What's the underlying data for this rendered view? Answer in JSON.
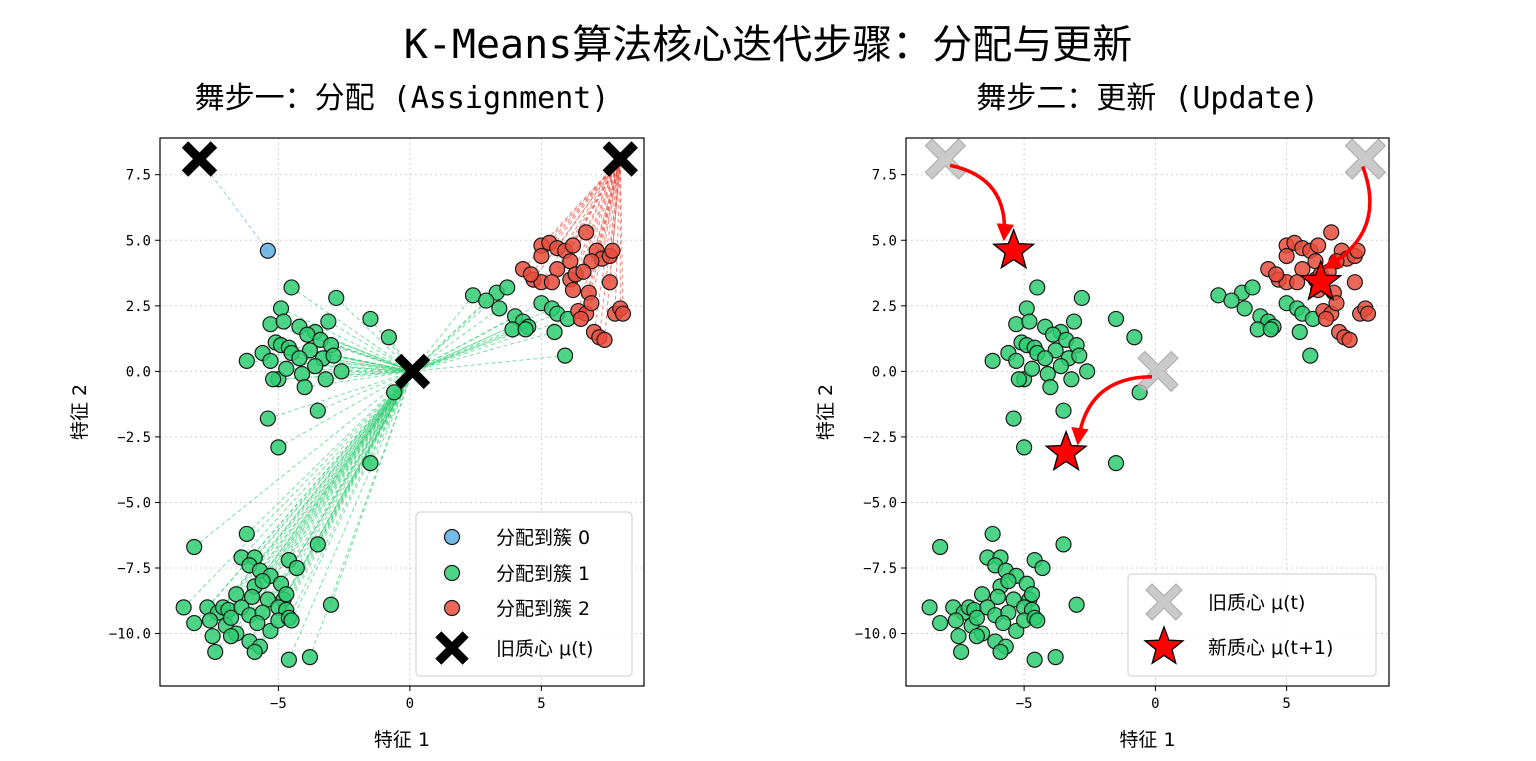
{
  "figure": {
    "suptitle": "K-Means算法核心迭代步骤：分配与更新"
  },
  "colors": {
    "cluster0": "#5DADE2",
    "cluster1": "#2ECC71",
    "cluster2": "#E74C3C",
    "old_centroid_left": "#000000",
    "old_centroid_right": "#BDBDBD",
    "new_centroid": "#FF0000",
    "arrow": "#FF0000"
  },
  "chart_data": [
    {
      "type": "scatter",
      "title": "舞步一：分配 (Assignment)",
      "xlabel": "特征 1",
      "ylabel": "特征 2",
      "xlim": [
        -9.5,
        8.9
      ],
      "ylim": [
        -12.0,
        8.9
      ],
      "xticks": [
        -5,
        0,
        5
      ],
      "xtick_labels": [
        "−5",
        "0",
        "5"
      ],
      "yticks": [
        -10,
        -7.5,
        -5,
        -2.5,
        0,
        2.5,
        5,
        7.5
      ],
      "ytick_labels": [
        "−10.0",
        "−7.5",
        "−5.0",
        "−2.5",
        "0.0",
        "2.5",
        "5.0",
        "7.5"
      ],
      "grid": true,
      "legend_position": "lower-right",
      "legend": [
        "分配到簇 0",
        "分配到簇 1",
        "分配到簇 2",
        "旧质心 μ(t)"
      ],
      "old_centroids": [
        [
          -8.0,
          8.1
        ],
        [
          0.1,
          0.0
        ],
        [
          8.0,
          8.1
        ]
      ],
      "cluster_0": [
        [
          -5.4,
          4.6
        ]
      ],
      "cluster_1": [
        [
          -4.5,
          3.2
        ],
        [
          -2.8,
          2.8
        ],
        [
          -4.9,
          2.4
        ],
        [
          -1.5,
          2.0
        ],
        [
          -5.3,
          1.8
        ],
        [
          -4.8,
          1.9
        ],
        [
          -4.2,
          1.7
        ],
        [
          -3.1,
          1.9
        ],
        [
          -3.6,
          1.5
        ],
        [
          -0.8,
          1.3
        ],
        [
          -5.1,
          1.1
        ],
        [
          -4.9,
          1.0
        ],
        [
          -4.6,
          0.9
        ],
        [
          -3.9,
          1.4
        ],
        [
          -3.4,
          1.2
        ],
        [
          -3.0,
          1.0
        ],
        [
          -5.6,
          0.7
        ],
        [
          -4.5,
          0.7
        ],
        [
          -3.8,
          0.8
        ],
        [
          -3.3,
          0.5
        ],
        [
          -6.2,
          0.4
        ],
        [
          -5.3,
          0.4
        ],
        [
          -4.2,
          0.5
        ],
        [
          -3.6,
          0.2
        ],
        [
          -2.9,
          0.6
        ],
        [
          -5.0,
          -0.3
        ],
        [
          -4.7,
          0.1
        ],
        [
          -4.1,
          -0.1
        ],
        [
          -3.2,
          -0.3
        ],
        [
          -2.6,
          0.0
        ],
        [
          -5.2,
          -0.3
        ],
        [
          -4.0,
          -0.6
        ],
        [
          -3.5,
          -1.5
        ],
        [
          -5.4,
          -1.8
        ],
        [
          -5.0,
          -2.9
        ],
        [
          -0.6,
          -0.8
        ],
        [
          -1.5,
          -3.5
        ],
        [
          -6.2,
          -6.2
        ],
        [
          -3.5,
          -6.6
        ],
        [
          -8.2,
          -6.7
        ],
        [
          -6.4,
          -7.1
        ],
        [
          -5.9,
          -7.1
        ],
        [
          -4.6,
          -7.2
        ],
        [
          -6.1,
          -7.4
        ],
        [
          -5.7,
          -7.6
        ],
        [
          -5.3,
          -7.8
        ],
        [
          -4.3,
          -7.5
        ],
        [
          -5.9,
          -8.2
        ],
        [
          -5.6,
          -8.0
        ],
        [
          -4.9,
          -8.1
        ],
        [
          -6.6,
          -8.5
        ],
        [
          -6.0,
          -8.6
        ],
        [
          -5.4,
          -8.7
        ],
        [
          -4.8,
          -8.7
        ],
        [
          -4.7,
          -8.5
        ],
        [
          -8.6,
          -9.0
        ],
        [
          -7.7,
          -9.0
        ],
        [
          -7.3,
          -9.2
        ],
        [
          -7.1,
          -9.0
        ],
        [
          -6.9,
          -9.1
        ],
        [
          -6.4,
          -9.0
        ],
        [
          -6.1,
          -9.3
        ],
        [
          -5.6,
          -9.2
        ],
        [
          -5.0,
          -9.0
        ],
        [
          -4.7,
          -9.1
        ],
        [
          -8.2,
          -9.6
        ],
        [
          -7.6,
          -9.5
        ],
        [
          -7.0,
          -9.7
        ],
        [
          -6.6,
          -10.0
        ],
        [
          -5.8,
          -9.6
        ],
        [
          -5.3,
          -9.9
        ],
        [
          -5.0,
          -9.5
        ],
        [
          -4.6,
          -9.4
        ],
        [
          -7.5,
          -10.1
        ],
        [
          -6.8,
          -10.1
        ],
        [
          -6.1,
          -10.3
        ],
        [
          -5.7,
          -10.5
        ],
        [
          -7.4,
          -10.7
        ],
        [
          -5.9,
          -10.7
        ],
        [
          -4.6,
          -11.0
        ],
        [
          -3.8,
          -10.9
        ],
        [
          -3.0,
          -8.9
        ],
        [
          -6.8,
          -9.4
        ],
        [
          -4.5,
          -9.5
        ],
        [
          2.4,
          2.9
        ],
        [
          3.3,
          3.0
        ],
        [
          2.9,
          2.7
        ],
        [
          3.7,
          3.2
        ],
        [
          3.4,
          2.4
        ],
        [
          4.0,
          2.1
        ],
        [
          4.3,
          1.9
        ],
        [
          4.5,
          1.7
        ],
        [
          3.9,
          1.6
        ],
        [
          4.4,
          1.6
        ],
        [
          5.0,
          2.6
        ],
        [
          5.4,
          2.4
        ],
        [
          5.6,
          2.2
        ],
        [
          6.0,
          2.0
        ],
        [
          5.5,
          1.5
        ],
        [
          5.9,
          0.6
        ]
      ],
      "cluster_2": [
        [
          6.7,
          5.3
        ],
        [
          5.0,
          4.8
        ],
        [
          5.3,
          4.9
        ],
        [
          5.6,
          4.7
        ],
        [
          5.9,
          4.6
        ],
        [
          6.2,
          4.8
        ],
        [
          7.1,
          4.6
        ],
        [
          7.3,
          4.3
        ],
        [
          7.6,
          4.4
        ],
        [
          7.7,
          4.6
        ],
        [
          5.0,
          4.4
        ],
        [
          6.1,
          4.2
        ],
        [
          6.9,
          4.2
        ],
        [
          4.3,
          3.9
        ],
        [
          4.7,
          3.5
        ],
        [
          5.0,
          3.4
        ],
        [
          5.6,
          3.9
        ],
        [
          6.1,
          3.5
        ],
        [
          6.3,
          3.7
        ],
        [
          6.6,
          3.8
        ],
        [
          4.6,
          3.7
        ],
        [
          5.4,
          3.4
        ],
        [
          6.2,
          3.1
        ],
        [
          6.8,
          3.0
        ],
        [
          7.6,
          3.4
        ],
        [
          6.4,
          2.3
        ],
        [
          6.7,
          2.2
        ],
        [
          6.9,
          2.6
        ],
        [
          6.5,
          2.0
        ],
        [
          7.0,
          1.5
        ],
        [
          7.2,
          1.3
        ],
        [
          7.4,
          1.2
        ],
        [
          7.8,
          2.2
        ],
        [
          8.0,
          2.4
        ],
        [
          8.1,
          2.2
        ]
      ],
      "lines": "dashed lines from each point to its assigned old centroid"
    },
    {
      "type": "scatter",
      "title": "舞步二：更新 (Update)",
      "xlabel": "特征 1",
      "ylabel": "特征 2",
      "xlim": [
        -9.5,
        8.9
      ],
      "ylim": [
        -12.0,
        8.9
      ],
      "xticks": [
        -5,
        0,
        5
      ],
      "xtick_labels": [
        "−5",
        "0",
        "5"
      ],
      "yticks": [
        -10,
        -7.5,
        -5,
        -2.5,
        0,
        2.5,
        5,
        7.5
      ],
      "ytick_labels": [
        "−10.0",
        "−7.5",
        "−5.0",
        "−2.5",
        "0.0",
        "2.5",
        "5.0",
        "7.5"
      ],
      "grid": true,
      "legend_position": "lower-right",
      "legend": [
        "旧质心 μ(t)",
        "新质心 μ(t+1)"
      ],
      "old_centroids": [
        [
          -8.0,
          8.1
        ],
        [
          0.1,
          0.0
        ],
        [
          8.0,
          8.1
        ]
      ],
      "new_centroids": [
        [
          -5.4,
          4.6
        ],
        [
          -3.4,
          -3.1
        ],
        [
          6.3,
          3.4
        ]
      ]
    }
  ]
}
